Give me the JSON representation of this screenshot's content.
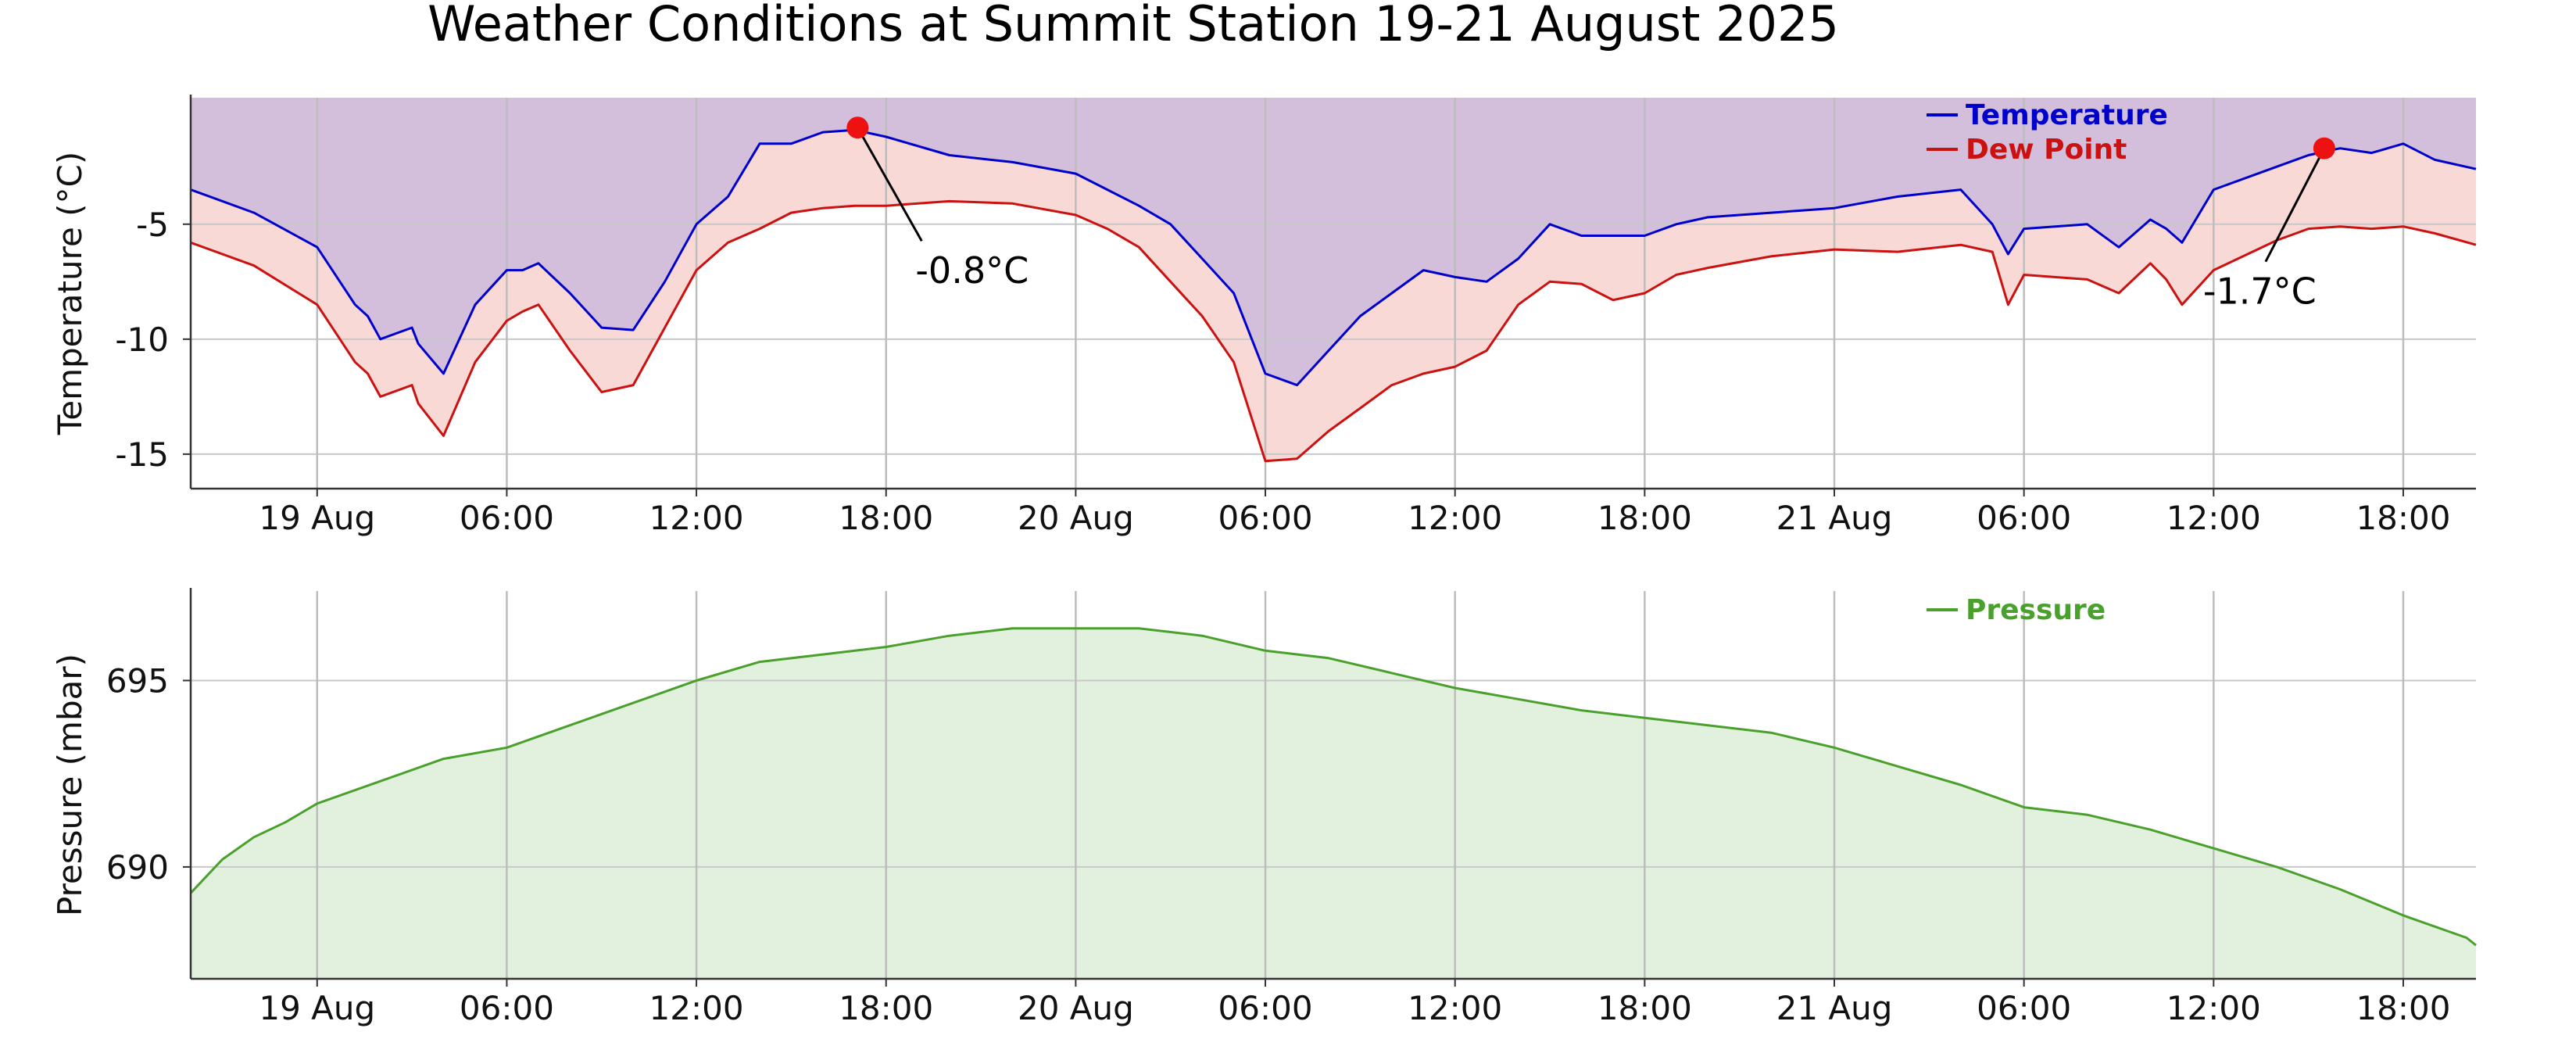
{
  "title": "Weather Conditions at Summit Station   19-21 August 2025",
  "colors": {
    "temperature": "#0000cc",
    "dew_point": "#cc1111",
    "pressure": "#4aa02c",
    "top_fill": "#d3bfdc",
    "mid_fill": "#f8d9d6",
    "pressure_fill": "#e2f1de",
    "marker": "#ee1111"
  },
  "chart_data": [
    {
      "type": "line",
      "ylabel": "Temperature (°C)",
      "xlabel": "",
      "xlim": [
        -4,
        68.3
      ],
      "ylim": [
        -16.5,
        0.5
      ],
      "x_unit": "hours since 19 Aug 00:00",
      "x_ticks": [
        0,
        6,
        12,
        18,
        24,
        30,
        36,
        42,
        48,
        54,
        60,
        66
      ],
      "x_tick_labels": [
        "19 Aug",
        "06:00",
        "12:00",
        "18:00",
        "20 Aug",
        "06:00",
        "12:00",
        "18:00",
        "21 Aug",
        "06:00",
        "12:00",
        "18:00"
      ],
      "y_ticks": [
        -5,
        -10,
        -15
      ],
      "y_tick_labels": [
        "-5",
        "-10",
        "-15"
      ],
      "grid": true,
      "legend": "top-right",
      "series": [
        {
          "name": "Temperature",
          "x": [
            -4,
            -2,
            0,
            1.2,
            1.6,
            2,
            3,
            3.2,
            4,
            5,
            6,
            6.5,
            7,
            8,
            9,
            10,
            11,
            12,
            13,
            14,
            15,
            16,
            17,
            18,
            20,
            22,
            24,
            25,
            26,
            27,
            28,
            29,
            30,
            31,
            32,
            33,
            34,
            35,
            36,
            37,
            38,
            39,
            40,
            41,
            42,
            43,
            44,
            46,
            48,
            50,
            52,
            53,
            53.5,
            54,
            56,
            57,
            58,
            58.5,
            59,
            60,
            62,
            63,
            64,
            65,
            66,
            67,
            68.3
          ],
          "y": [
            -3.5,
            -4.5,
            -6,
            -8.5,
            -9,
            -10,
            -9.5,
            -10.2,
            -11.5,
            -8.5,
            -7,
            -7,
            -6.7,
            -8,
            -9.5,
            -9.6,
            -7.5,
            -5,
            -3.8,
            -1.5,
            -1.5,
            -1,
            -0.9,
            -1.2,
            -2,
            -2.3,
            -2.8,
            -3.5,
            -4.2,
            -5,
            -6.5,
            -8,
            -11.5,
            -12,
            -10.5,
            -9,
            -8,
            -7,
            -7.3,
            -7.5,
            -6.5,
            -5,
            -5.5,
            -5.5,
            -5.5,
            -5,
            -4.7,
            -4.5,
            -4.3,
            -3.8,
            -3.5,
            -5,
            -6.3,
            -5.2,
            -5,
            -6,
            -4.8,
            -5.2,
            -5.8,
            -3.5,
            -2.5,
            -2,
            -1.7,
            -1.9,
            -1.5,
            -2.2,
            -2.6
          ]
        },
        {
          "name": "Dew Point",
          "x": [
            -4,
            -2,
            0,
            1.2,
            1.6,
            2,
            3,
            3.2,
            4,
            5,
            6,
            6.5,
            7,
            8,
            9,
            10,
            11,
            12,
            13,
            14,
            15,
            16,
            17,
            18,
            20,
            22,
            24,
            25,
            26,
            27,
            28,
            29,
            30,
            31,
            32,
            33,
            34,
            35,
            36,
            37,
            38,
            39,
            40,
            41,
            42,
            43,
            44,
            46,
            48,
            50,
            52,
            53,
            53.5,
            54,
            56,
            57,
            58,
            58.5,
            59,
            60,
            62,
            63,
            64,
            65,
            66,
            67,
            68.3
          ],
          "y": [
            -5.8,
            -6.8,
            -8.5,
            -11,
            -11.5,
            -12.5,
            -12,
            -12.8,
            -14.2,
            -11,
            -9.2,
            -8.8,
            -8.5,
            -10.5,
            -12.3,
            -12,
            -9.5,
            -7,
            -5.8,
            -5.2,
            -4.5,
            -4.3,
            -4.2,
            -4.2,
            -4.0,
            -4.1,
            -4.6,
            -5.2,
            -6,
            -7.5,
            -9,
            -11,
            -15.3,
            -15.2,
            -14,
            -13,
            -12,
            -11.5,
            -11.2,
            -10.5,
            -8.5,
            -7.5,
            -7.6,
            -8.3,
            -8,
            -7.2,
            -6.9,
            -6.4,
            -6.1,
            -6.2,
            -5.9,
            -6.2,
            -8.5,
            -7.2,
            -7.4,
            -8,
            -6.7,
            -7.4,
            -8.5,
            -7,
            -5.7,
            -5.2,
            -5.1,
            -5.2,
            -5.1,
            -5.4,
            -5.9
          ]
        }
      ],
      "annotations": [
        {
          "text": "-0.8°C",
          "x": 17.1,
          "y": -0.8
        },
        {
          "text": "-1.7°C",
          "x": 63.5,
          "y": -1.7
        }
      ]
    },
    {
      "type": "area",
      "ylabel": "Pressure (mbar)",
      "xlabel": "",
      "xlim": [
        -4,
        68.3
      ],
      "ylim": [
        687,
        697.4
      ],
      "x_unit": "hours since 19 Aug 00:00",
      "x_ticks": [
        0,
        6,
        12,
        18,
        24,
        30,
        36,
        42,
        48,
        54,
        60,
        66
      ],
      "x_tick_labels": [
        "19 Aug",
        "06:00",
        "12:00",
        "18:00",
        "20 Aug",
        "06:00",
        "12:00",
        "18:00",
        "21 Aug",
        "06:00",
        "12:00",
        "18:00"
      ],
      "y_ticks": [
        695,
        690
      ],
      "y_tick_labels": [
        "695",
        "690"
      ],
      "grid": true,
      "legend": "top-right",
      "series": [
        {
          "name": "Pressure",
          "x": [
            -4,
            -3,
            -2,
            -1,
            0,
            2,
            4,
            6,
            8,
            10,
            12,
            14,
            16,
            18,
            20,
            22,
            24,
            26,
            28,
            30,
            32,
            34,
            36,
            38,
            40,
            42,
            44,
            46,
            48,
            50,
            52,
            54,
            56,
            58,
            60,
            62,
            64,
            66,
            68,
            68.3
          ],
          "y": [
            689.3,
            690.2,
            690.8,
            691.2,
            691.7,
            692.3,
            692.9,
            693.2,
            693.8,
            694.4,
            695.0,
            695.5,
            695.7,
            695.9,
            696.2,
            696.4,
            696.4,
            696.4,
            696.2,
            695.8,
            695.6,
            695.2,
            694.8,
            694.5,
            694.2,
            694.0,
            693.8,
            693.6,
            693.2,
            692.7,
            692.2,
            691.6,
            691.4,
            691.0,
            690.5,
            690.0,
            689.4,
            688.7,
            688.1,
            687.9
          ]
        }
      ]
    }
  ]
}
